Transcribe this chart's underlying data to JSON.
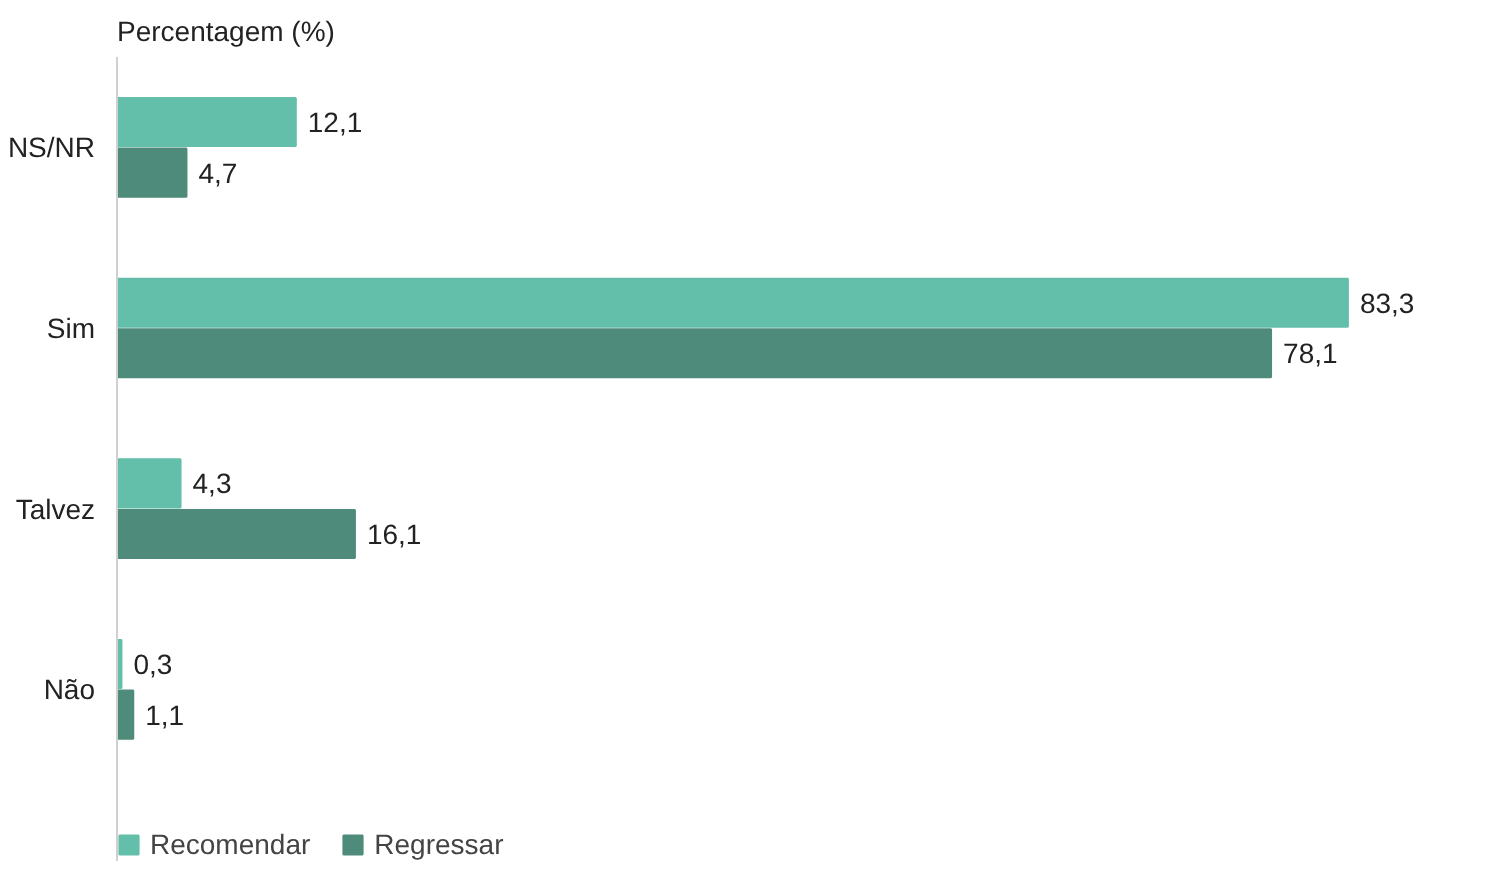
{
  "chart_data": {
    "type": "bar",
    "orientation": "horizontal",
    "title": "Percentagem (%)",
    "categories": [
      "NS/NR",
      "Sim",
      "Talvez",
      "Não"
    ],
    "series": [
      {
        "name": "Recomendar",
        "color": "#63bfa9",
        "values": [
          12.1,
          83.3,
          4.3,
          0.3
        ],
        "value_labels": [
          "12,1",
          "83,3",
          "4,3",
          "0,3"
        ]
      },
      {
        "name": "Regressar",
        "color": "#4e8b7a",
        "values": [
          4.7,
          78.1,
          16.1,
          1.1
        ],
        "value_labels": [
          "4,7",
          "78,1",
          "16,1",
          "1,1"
        ]
      }
    ],
    "legend": "bottom left",
    "grid": false
  }
}
